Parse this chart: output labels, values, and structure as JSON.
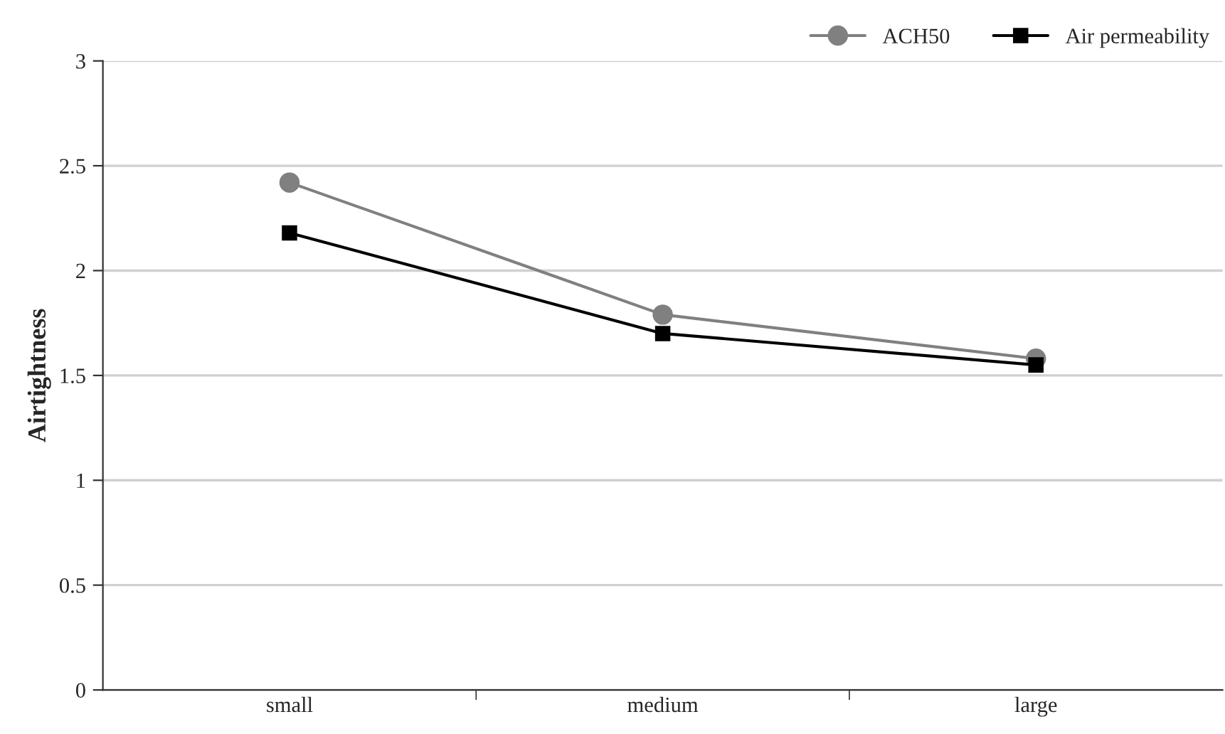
{
  "chart_data": {
    "type": "line",
    "ylabel": "Airtightness",
    "categories": [
      "small",
      "medium",
      "large"
    ],
    "series": [
      {
        "name": "ACH50",
        "color": "#808080",
        "marker": "circle",
        "values": [
          2.42,
          1.79,
          1.58
        ]
      },
      {
        "name": "Air permeability",
        "color": "#000000",
        "marker": "square",
        "values": [
          2.18,
          1.7,
          1.55
        ]
      }
    ],
    "ylim": [
      0,
      3
    ],
    "yticks": [
      0,
      0.5,
      1,
      1.5,
      2,
      2.5,
      3
    ],
    "grid": "y",
    "legend": "top right",
    "line_style": "solid"
  }
}
